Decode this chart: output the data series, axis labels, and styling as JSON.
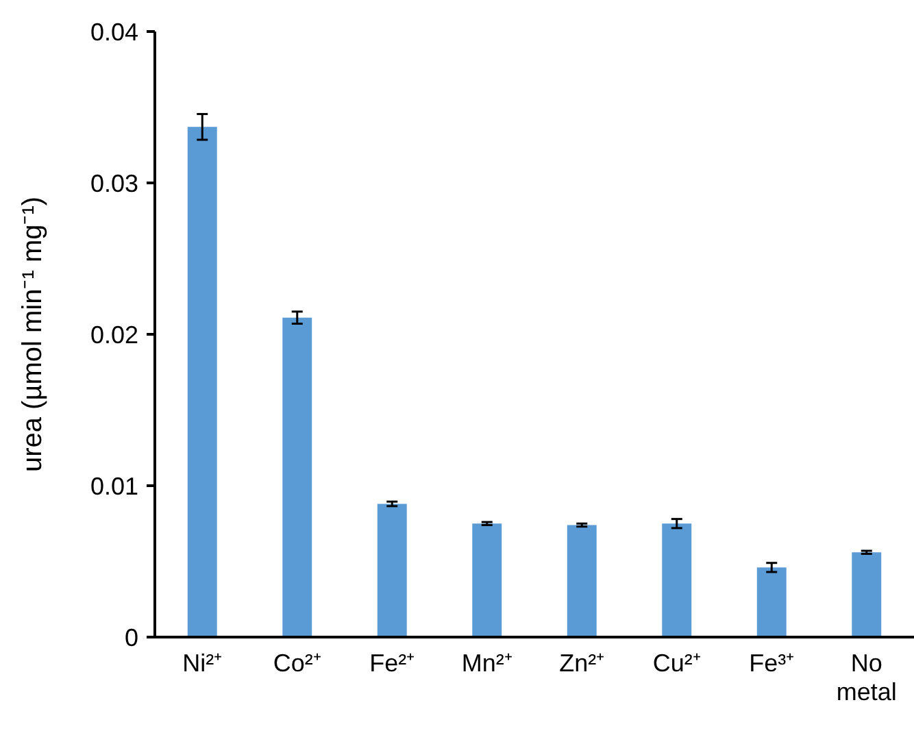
{
  "chart_data": {
    "type": "bar",
    "ylabel": "urea (µmol min⁻¹ mg⁻¹)",
    "categories": [
      "Ni²⁺",
      "Co²⁺",
      "Fe²⁺",
      "Mn²⁺",
      "Zn²⁺",
      "Cu²⁺",
      "Fe³⁺",
      "No metal"
    ],
    "values": [
      0.0337,
      0.0211,
      0.0088,
      0.0075,
      0.0074,
      0.0075,
      0.0046,
      0.0056
    ],
    "errors": [
      0.00085,
      0.0004,
      0.00015,
      0.0001,
      0.0001,
      0.0003,
      0.0003,
      0.0001
    ],
    "color": "#5b9bd5",
    "ylim": [
      0,
      0.04
    ],
    "yticks": [
      0,
      0.01,
      0.02,
      0.03,
      0.04
    ],
    "grid": false
  }
}
